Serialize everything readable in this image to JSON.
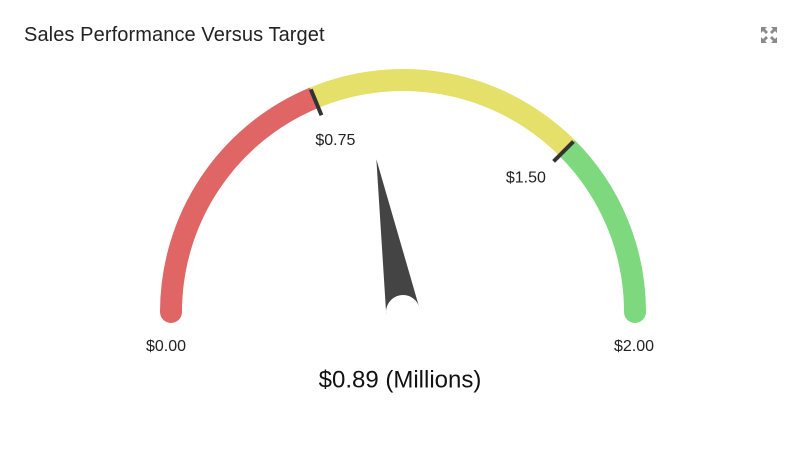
{
  "panel": {
    "title": "Sales Performance Versus Target",
    "expand_icon": "expand-icon"
  },
  "chart_data": {
    "type": "gauge",
    "title": "Sales Performance Versus Target",
    "value": 0.89,
    "value_label": "$0.89 (Millions)",
    "min": 0,
    "max": 2,
    "min_label": "$0.00",
    "max_label": "$2.00",
    "bands": [
      {
        "from": 0,
        "to": 0.75,
        "color": "#e06666"
      },
      {
        "from": 0.75,
        "to": 1.5,
        "color": "#e4e06a"
      },
      {
        "from": 1.5,
        "to": 2,
        "color": "#7dd87e"
      }
    ],
    "thresholds": [
      {
        "value": 0.75,
        "label": "$0.75"
      },
      {
        "value": 1.5,
        "label": "$1.50"
      }
    ],
    "needle_color": "#444444",
    "tick_color": "#333333"
  }
}
